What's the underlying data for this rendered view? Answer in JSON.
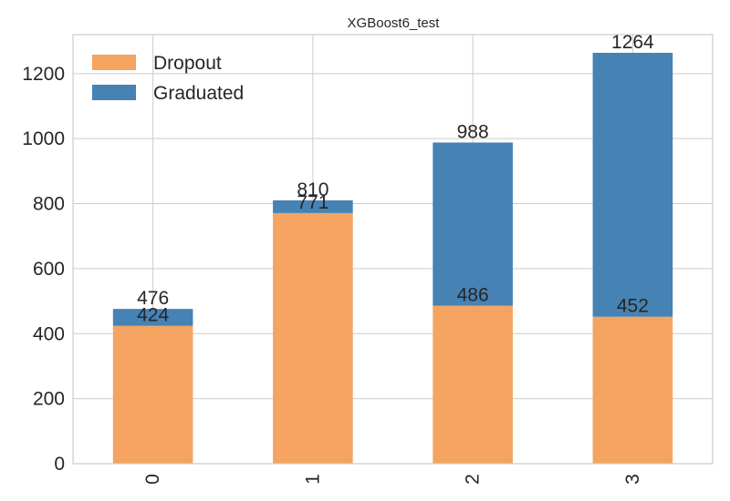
{
  "chart_data": {
    "type": "bar",
    "stacked": true,
    "title": "XGBoost6_test",
    "xlabel": "",
    "ylabel": "",
    "categories": [
      "0",
      "1",
      "2",
      "3"
    ],
    "series": [
      {
        "name": "Dropout",
        "color": "#f4a460",
        "values": [
          424,
          771,
          486,
          452
        ]
      },
      {
        "name": "Graduated",
        "color": "#4682b4",
        "values": [
          52,
          39,
          502,
          812
        ]
      }
    ],
    "segment_labels": {
      "Dropout": [
        "424",
        "771",
        "486",
        "452"
      ],
      "Graduated": [
        "476",
        "810",
        "988",
        "1264"
      ]
    },
    "ylim": [
      0,
      1320
    ],
    "yticks": [
      0,
      200,
      400,
      600,
      800,
      1000,
      1200
    ],
    "grid": true,
    "legend_position": "top-left"
  }
}
